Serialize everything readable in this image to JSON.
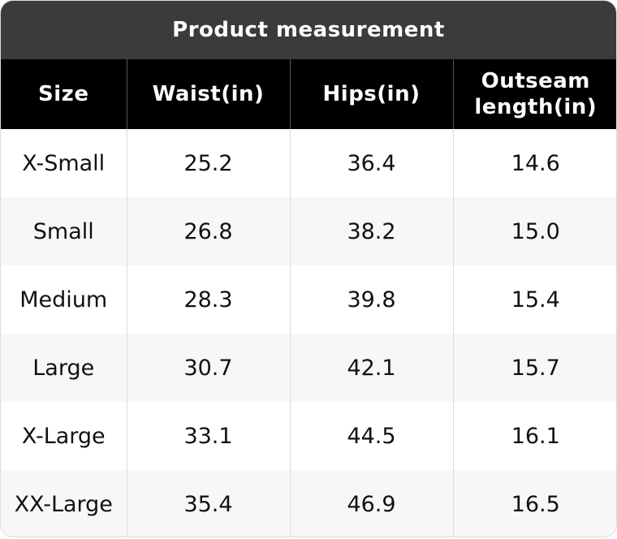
{
  "title": "Product measurement",
  "table": {
    "header": [
      "Size",
      "Waist(in)",
      "Hips(in)",
      "Outseam length(in)"
    ],
    "rows": [
      [
        "X-Small",
        "25.2",
        "36.4",
        "14.6"
      ],
      [
        "Small",
        "26.8",
        "38.2",
        "15.0"
      ],
      [
        "Medium",
        "28.3",
        "39.8",
        "15.4"
      ],
      [
        "Large",
        "30.7",
        "42.1",
        "15.7"
      ],
      [
        "X-Large",
        "33.1",
        "44.5",
        "16.1"
      ],
      [
        "XX-Large",
        "35.4",
        "46.9",
        "16.5"
      ]
    ]
  }
}
